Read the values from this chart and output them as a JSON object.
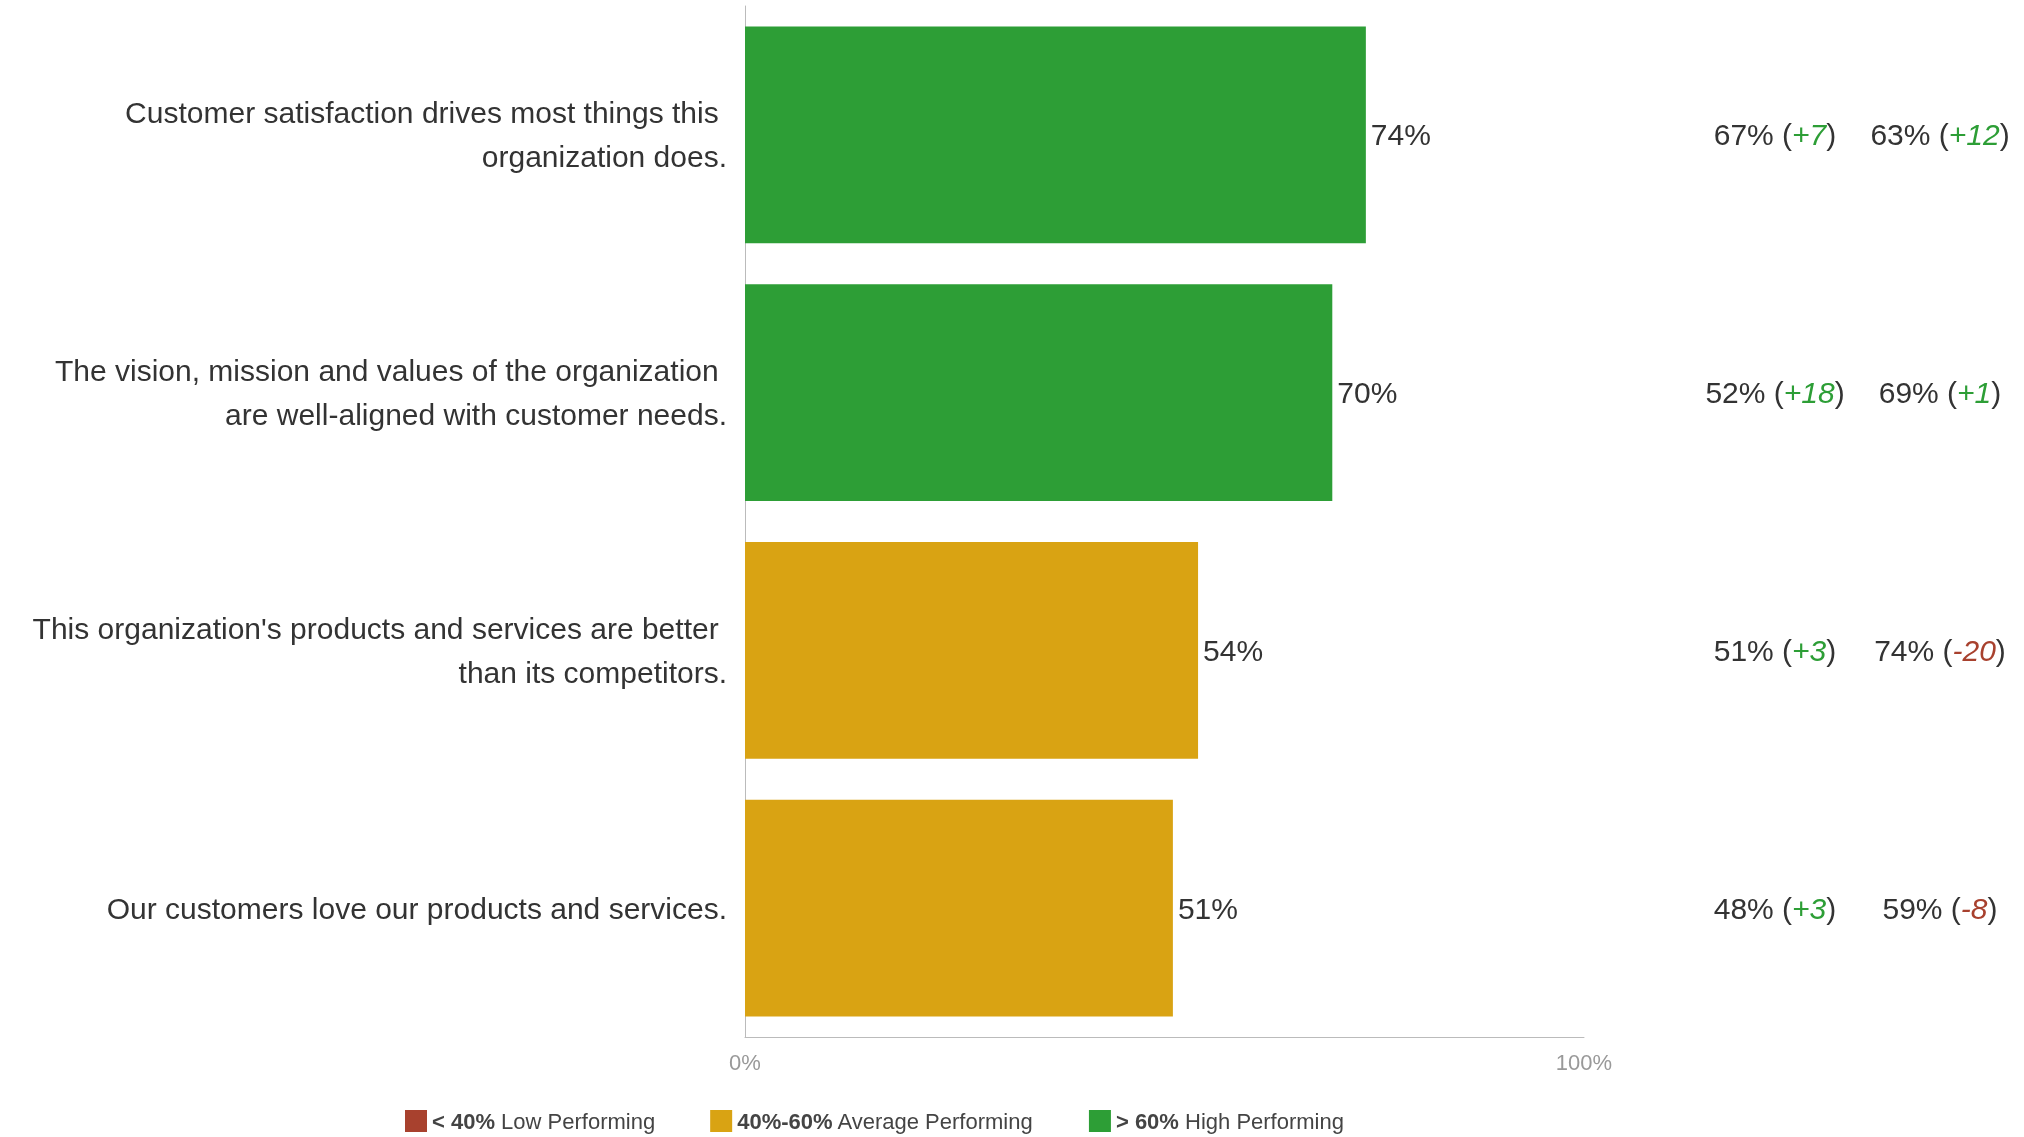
{
  "chart_data": {
    "type": "bar",
    "orientation": "horizontal",
    "stacked": true,
    "categories": [
      "Customer satisfaction drives most things this organization does.",
      "The vision, mission and values of the organization are well-aligned with customer needs.",
      "This organization's products and services are better than its competitors.",
      "Our customers love our products and services."
    ],
    "series": [
      {
        "name": "< 40% Low Performing",
        "color": "#a8412e",
        "values": [
          null,
          null,
          null,
          null
        ],
        "value_labels": [
          null,
          null,
          null,
          null
        ]
      },
      {
        "name": "40%-60% Average Performing",
        "color": "#d9a313",
        "values": [
          null,
          null,
          54,
          51
        ],
        "value_labels": [
          null,
          null,
          "54%",
          "51%"
        ]
      },
      {
        "name": "> 60% High Performing",
        "color": "#2d9e36",
        "values": [
          74,
          70,
          null,
          null
        ],
        "value_labels": [
          "74%",
          "70%",
          null,
          null
        ]
      }
    ],
    "xlim": [
      0,
      100
    ],
    "xticks": [
      {
        "value": 0,
        "label": "0%"
      },
      {
        "value": 100,
        "label": "100%"
      }
    ],
    "grid": false,
    "legend": "bottom",
    "annotations": [
      "67% (+7)",
      "63% (+12)",
      "52% (+18)",
      "69% (+1)",
      "51% (+3)",
      "74% (-20)",
      "48% (+3)",
      "59% (-8)"
    ]
  }
}
